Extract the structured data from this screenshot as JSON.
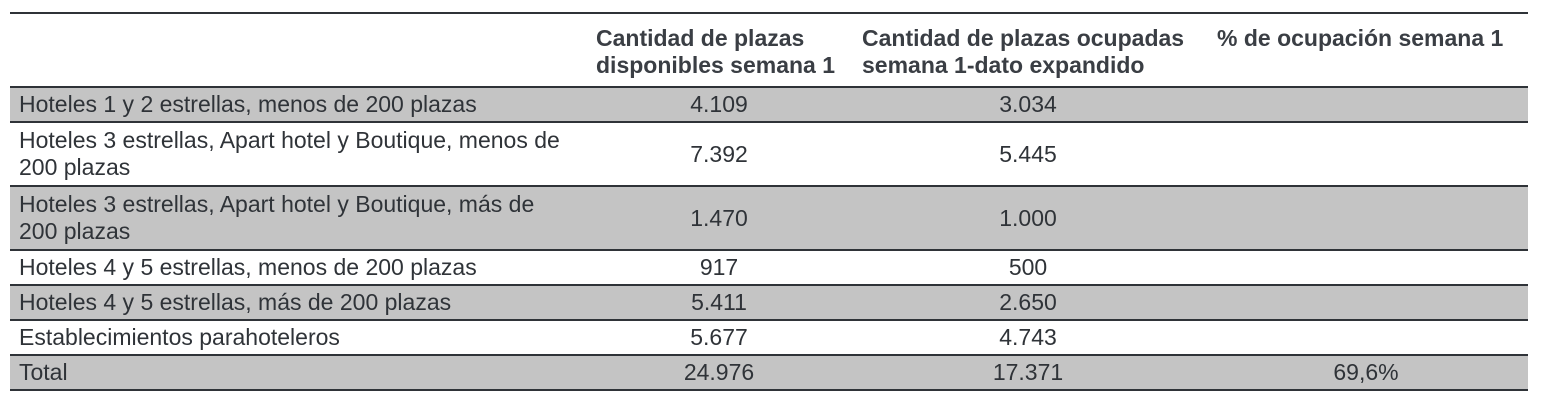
{
  "table": {
    "headers": [
      "",
      "Cantidad de plazas disponibles semana 1",
      "Cantidad de plazas ocupadas semana 1-dato expandido",
      "% de ocupación semana 1"
    ],
    "rows": [
      {
        "label": "Hoteles 1 y 2 estrellas, menos de 200 plazas",
        "disponibles": "4.109",
        "ocupadas": "3.034",
        "ocupacion": ""
      },
      {
        "label": "Hoteles 3 estrellas,  Apart hotel y Boutique, menos de 200 plazas",
        "disponibles": "7.392",
        "ocupadas": "5.445",
        "ocupacion": ""
      },
      {
        "label": "Hoteles 3 estrellas,  Apart hotel y Boutique, más de 200 plazas",
        "disponibles": "1.470",
        "ocupadas": "1.000",
        "ocupacion": ""
      },
      {
        "label": "Hoteles 4 y 5 estrellas, menos de 200 plazas",
        "disponibles": "917",
        "ocupadas": "500",
        "ocupacion": ""
      },
      {
        "label": "Hoteles 4 y 5 estrellas, más de 200 plazas",
        "disponibles": "5.411",
        "ocupadas": "2.650",
        "ocupacion": ""
      },
      {
        "label": "Establecimientos parahoteleros",
        "disponibles": "5.677",
        "ocupadas": "4.743",
        "ocupacion": ""
      },
      {
        "label": "Total",
        "disponibles": "24.976",
        "ocupadas": "17.371",
        "ocupacion": "69,6%"
      }
    ]
  },
  "colors": {
    "shaded_row": "#c4c4c4",
    "rule": "#2f3338",
    "text": "#2f3338"
  }
}
